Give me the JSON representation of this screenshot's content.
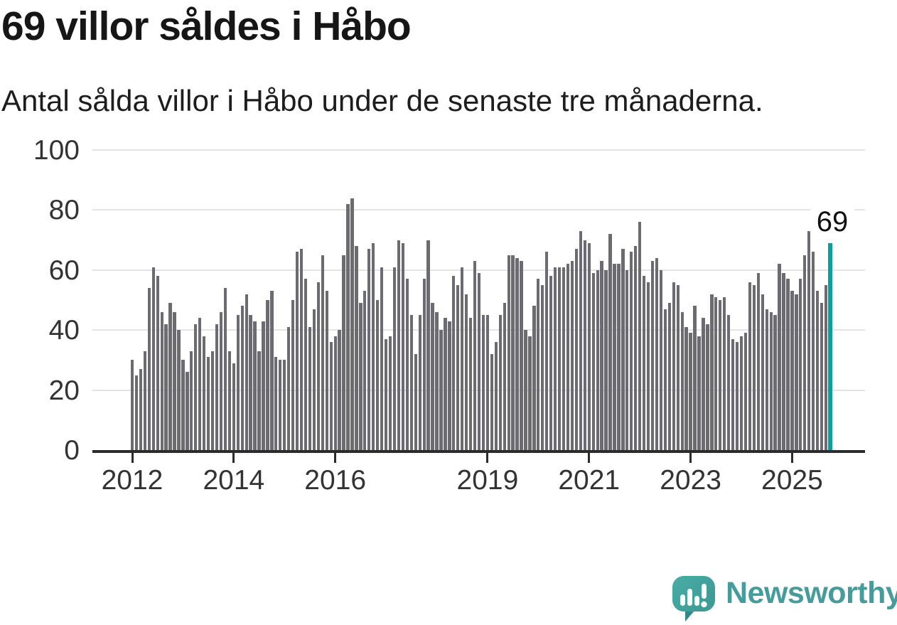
{
  "header": {
    "title": "69 villor såldes i Håbo",
    "subtitle": "Antal sålda villor i Håbo under de senaste tre månaderna."
  },
  "footer": {
    "brand": "Newsworthy"
  },
  "colors": {
    "bar": "#6b6b71",
    "highlight": "#0aa0a0",
    "gridline": "#e4e4e4",
    "axis": "#2b2b2b",
    "logo_teal": "#459c9a",
    "logo_bubble": "#45a6a1",
    "logo_bubble_dark": "#2f8a87"
  },
  "chart_data": {
    "type": "bar",
    "title": "69 villor såldes i Håbo",
    "subtitle": "Antal sålda villor i Håbo under de senaste tre månaderna.",
    "unit": "antal sålda villor (rullande tre månader)",
    "x_start": "2012-01",
    "x_end": "2025-10",
    "x_frequency": "monthly",
    "values": [
      30,
      25,
      27,
      33,
      54,
      61,
      58,
      46,
      42,
      49,
      46,
      40,
      30,
      26,
      33,
      42,
      44,
      38,
      31,
      33,
      42,
      46,
      54,
      33,
      29,
      45,
      48,
      52,
      45,
      43,
      33,
      43,
      50,
      53,
      31,
      30,
      30,
      41,
      50,
      66,
      67,
      57,
      41,
      47,
      56,
      65,
      53,
      36,
      38,
      40,
      65,
      82,
      84,
      68,
      49,
      53,
      67,
      69,
      50,
      61,
      37,
      38,
      61,
      70,
      69,
      57,
      45,
      32,
      45,
      57,
      70,
      49,
      46,
      40,
      44,
      43,
      58,
      55,
      61,
      52,
      44,
      63,
      59,
      45,
      45,
      32,
      36,
      45,
      49,
      65,
      65,
      64,
      63,
      40,
      38,
      48,
      57,
      55,
      66,
      58,
      61,
      61,
      61,
      62,
      63,
      67,
      73,
      70,
      69,
      59,
      60,
      63,
      60,
      72,
      62,
      62,
      67,
      60,
      66,
      68,
      76,
      58,
      56,
      63,
      64,
      60,
      47,
      49,
      56,
      55,
      46,
      41,
      39,
      48,
      38,
      44,
      42,
      52,
      51,
      50,
      51,
      45,
      37,
      36,
      38,
      39,
      56,
      55,
      59,
      52,
      47,
      46,
      45,
      62,
      59,
      57,
      53,
      52,
      57,
      65,
      73,
      66,
      53,
      49,
      55,
      69
    ],
    "highlight_index": 165,
    "highlight_label": "69",
    "ylim": [
      0,
      100
    ],
    "yticks": [
      0,
      20,
      40,
      60,
      80,
      100
    ],
    "xticks": [
      {
        "label": "2012",
        "month_index": 0
      },
      {
        "label": "2014",
        "month_index": 24
      },
      {
        "label": "2016",
        "month_index": 48
      },
      {
        "label": "2019",
        "month_index": 84
      },
      {
        "label": "2021",
        "month_index": 108
      },
      {
        "label": "2023",
        "month_index": 132
      },
      {
        "label": "2025",
        "month_index": 156
      }
    ],
    "grid": true,
    "legend": "none"
  }
}
